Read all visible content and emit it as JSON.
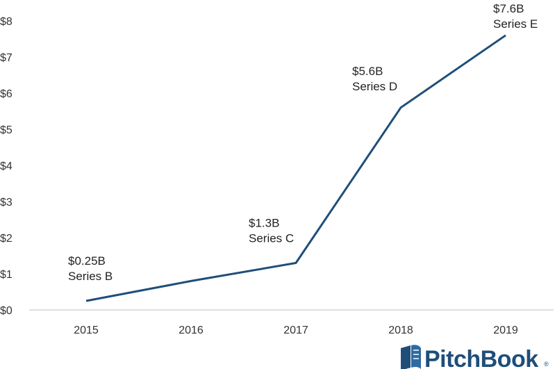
{
  "chart_data": {
    "type": "line",
    "x": [
      "2015",
      "2016",
      "2017",
      "2018",
      "2019"
    ],
    "series": [
      {
        "values": [
          0.25,
          0.8,
          1.3,
          5.6,
          7.6
        ]
      }
    ],
    "annotations": [
      {
        "x": "2015",
        "value_label": "$0.25B",
        "round_label": "Series B"
      },
      {
        "x": "2017",
        "value_label": "$1.3B",
        "round_label": "Series C"
      },
      {
        "x": "2018",
        "value_label": "$5.6B",
        "round_label": "Series D"
      },
      {
        "x": "2019",
        "value_label": "$7.6B",
        "round_label": "Series E"
      }
    ],
    "y_ticks": [
      "$0",
      "$1",
      "$2",
      "$3",
      "$4",
      "$5",
      "$6",
      "$7",
      "$8"
    ],
    "ylim": [
      0,
      8
    ],
    "grid": false,
    "line_color": "#1f4e79",
    "title": "",
    "xlabel": "",
    "ylabel": ""
  },
  "logo": {
    "text": "PitchBook",
    "registered": "®",
    "color": "#1f4e79"
  }
}
